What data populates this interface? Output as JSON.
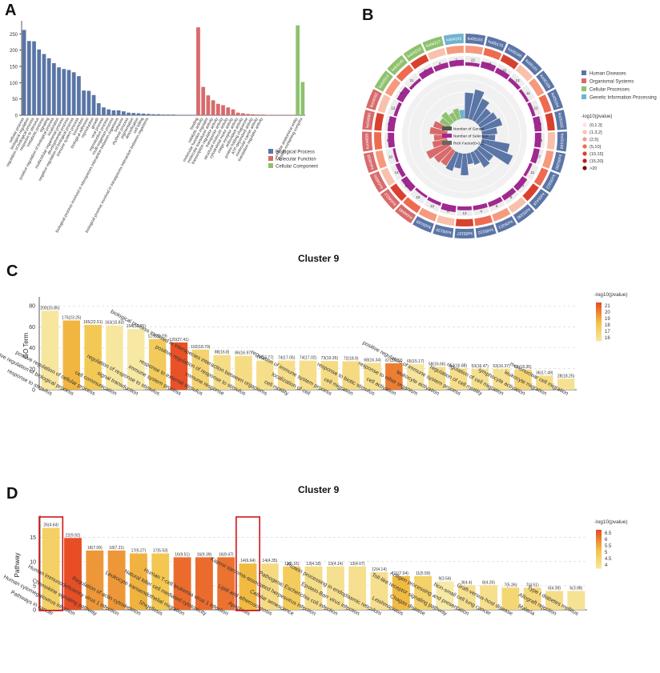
{
  "panels": {
    "a": "A",
    "b": "B",
    "c": "C",
    "d": "D"
  },
  "colors": {
    "bp": "#5a75a6",
    "mf": "#d86a6b",
    "cc": "#8ec16d",
    "human_diseases": "#5a75a6",
    "organismal_systems": "#d86a6b",
    "cellular_processes": "#8ec16d",
    "genetic_info": "#6fb2cf"
  },
  "chart_data": [
    {
      "id": "A",
      "type": "bar",
      "title": "",
      "xlabel": "",
      "ylabel": "",
      "ylim": [
        0,
        290
      ],
      "yticks": [
        0,
        50,
        100,
        150,
        200,
        250
      ],
      "legend_position": "right",
      "legend": [
        "Biological Process",
        "Molecular Function",
        "Cellular Component"
      ],
      "groups": [
        "bp",
        "bp",
        "bp",
        "bp",
        "bp",
        "bp",
        "bp",
        "bp",
        "bp",
        "bp",
        "bp",
        "bp",
        "bp",
        "bp",
        "bp",
        "bp",
        "bp",
        "bp",
        "bp",
        "bp",
        "bp",
        "bp",
        "bp",
        "bp",
        "bp",
        "bp",
        "bp",
        "bp",
        "bp",
        "bp",
        "bp",
        "bp",
        "bp",
        "bp",
        "bp",
        "mf",
        "mf",
        "mf",
        "mf",
        "mf",
        "mf",
        "mf",
        "mf",
        "mf",
        "mf",
        "mf",
        "mf",
        "mf",
        "mf",
        "mf",
        "mf",
        "mf",
        "mf",
        "mf",
        "mf",
        "cc",
        "cc"
      ],
      "categories": [
        "cellular process",
        "biological regulation",
        "regulation of biological process",
        "response to stimulus",
        "metabolic process",
        "signaling",
        "positive regulation of biological process",
        "localization",
        "multicellular organismal process",
        "developmental process",
        "negative regulation of biological process",
        "immune system process",
        "locomotion",
        "biological adhesion",
        "reproduction",
        "growth",
        "viral process",
        "reproductive process",
        "multi-organism process",
        "biological process involved in interspecies interaction between organisms",
        "behavior",
        "rhythmic process",
        "pigmentation",
        "detoxification",
        "cell killing",
        "biological process involved in intraspecies interaction between organisms",
        "",
        "",
        "",
        "",
        "",
        "",
        "",
        "",
        "",
        "binding",
        "catalytic activity",
        "molecular function regulator",
        "molecular transducer activity",
        "transcription regulator activity",
        "transporter activity",
        "structural molecule activity",
        "cytoskeletal motor activity",
        "cargo receptor activity",
        "antioxidant activity",
        "protein folding chaperone",
        "ATP-dependent activity",
        "molecular carrier activity",
        "translation regulator activity",
        "",
        "",
        "",
        "",
        "",
        "",
        "cellular anatomical entity",
        "protein-containing complex"
      ],
      "values": [
        262,
        228,
        227,
        202,
        188,
        175,
        160,
        147,
        142,
        139,
        132,
        120,
        76,
        75,
        62,
        37,
        24,
        18,
        15,
        15,
        12,
        8,
        7,
        6,
        5,
        4,
        3,
        3,
        2,
        2,
        2,
        1,
        1,
        1,
        1,
        270,
        87,
        61,
        46,
        35,
        31,
        24,
        18,
        8,
        6,
        4,
        3,
        2,
        2,
        1,
        1,
        1,
        1,
        1,
        1,
        276,
        102
      ]
    },
    {
      "id": "B",
      "type": "circular",
      "title": "",
      "legend_categories": [
        "Human Diseases",
        "Organismal Systems",
        "Cellular Processes",
        "Genetic Information Processing"
      ],
      "pvalue_legend_title": "-log10(pvalue)",
      "pvalue_bins": [
        "(0,1.3]",
        "(1.3,2]",
        "(2,5]",
        "(5,10]",
        "(10,15]",
        "(15,20]",
        ">20"
      ],
      "pvalue_colors": [
        "#fbe3dc",
        "#f9c1ad",
        "#f59a7e",
        "#ee6b51",
        "#d9412f",
        "#b21e1e",
        "#7e0a0a"
      ],
      "track_legend": [
        "Number of Genes",
        "Number of Selection",
        "Rich Factor(0-0.2)"
      ],
      "pathways": [
        "ko05163",
        "ko05170",
        "ko05166",
        "ko05161",
        "ko05169",
        "ko05164",
        "ko05162",
        "ko05168",
        "ko05200",
        "ko05322",
        "ko05416",
        "ko05330",
        "ko05321",
        "ko05222",
        "ko05167",
        "ko05130",
        "ko05169",
        "ko04640",
        "ko04612",
        "ko04650",
        "ko04658",
        "ko04659",
        "ko04660",
        "ko04062",
        "ko04514",
        "ko04145",
        "ko04210",
        "ko04217",
        "ko04141"
      ],
      "class": [
        "HD",
        "HD",
        "HD",
        "HD",
        "HD",
        "HD",
        "HD",
        "HD",
        "HD",
        "HD",
        "HD",
        "HD",
        "HD",
        "HD",
        "HD",
        "HD",
        "HD",
        "OS",
        "OS",
        "OS",
        "OS",
        "OS",
        "OS",
        "OS",
        "CP",
        "CP",
        "CP",
        "CP",
        "GI"
      ],
      "selected_counts": [
        22,
        18,
        16,
        13,
        11,
        12,
        9,
        8,
        17,
        11,
        7,
        6,
        5,
        4,
        13,
        8,
        12,
        10,
        9,
        14,
        10,
        8,
        9,
        12,
        9,
        11,
        8,
        6,
        7
      ],
      "rich_factor": [
        0.12,
        0.14,
        0.11,
        0.08,
        0.09,
        0.1,
        0.07,
        0.06,
        0.13,
        0.16,
        0.08,
        0.09,
        0.06,
        0.05,
        0.1,
        0.07,
        0.09,
        0.08,
        0.09,
        0.11,
        0.07,
        0.06,
        0.08,
        0.07,
        0.05,
        0.06,
        0.04,
        0.05,
        0.04
      ]
    },
    {
      "id": "C",
      "type": "bar",
      "title": "Cluster 9",
      "xlabel": "",
      "ylabel": "GO Term",
      "ylim": [
        0,
        84
      ],
      "yticks": [
        0,
        20,
        40,
        60,
        80
      ],
      "color_legend_title": "-log10(pvalue)",
      "color_legend_ticks": [
        21,
        20,
        19,
        18,
        17,
        16
      ],
      "categories": [
        "response to stimulus",
        "positive regulation of biological process",
        "positive regulation of cellular process",
        "cell communication",
        "signal transduction",
        "regulation of response to stimulus",
        "immune system process",
        "response to external stimulus",
        "immune response",
        "positive regulation of response to stimulus",
        "biological process involved in interspecies interaction between organisms",
        "cell motility",
        "localization of cell",
        "regulation of immune system process",
        "cell migration",
        "response to biotic stimulus",
        "cell activation",
        "response to other organism",
        "leukocyte activation",
        "positive regulation of immune system process",
        "regulation of cell motility",
        "regulation of cell migration",
        "lymphocyte activation",
        "leukocyte migration",
        "mononuclear cell migration"
      ],
      "values": [
        75.4,
        66.1,
        61.9,
        61.3,
        57.9,
        48.5,
        45.1,
        38.3,
        33.1,
        32.3,
        27.8,
        27.8,
        27.8,
        27.4,
        27.1,
        25.6,
        25.2,
        24.4,
        21.8,
        20.4,
        19.9,
        19.9,
        19.2,
        13.5,
        10.5
      ],
      "bar_labels": [
        "200(15.85)",
        "175(23.25)",
        "165(22.51)",
        "163(15.83)",
        "154(15.65)",
        "129(20.19)",
        "120(27.41)",
        "102(18.79)",
        "88(16.8)",
        "86(16.97)",
        "74(17.77)",
        "74(17.05)",
        "74(17.02)",
        "73(19.35)",
        "72(18.9)",
        "68(16.34)",
        "67(23.02)",
        "65(15.17)",
        "58(16.66)",
        "53(16.88)",
        "53(16.47)",
        "53(16.37)",
        "51(18.35)",
        "36(17.49)",
        "28(18.25)"
      ],
      "neglog10_pvalue": [
        15.85,
        18.8,
        18.0,
        15.83,
        15.65,
        17.8,
        21.3,
        17.2,
        16.5,
        16.6,
        16.4,
        16.4,
        16.4,
        16.6,
        16.7,
        16.3,
        20.2,
        15.9,
        16.5,
        16.4,
        16.3,
        16.3,
        17.0,
        16.6,
        16.2
      ]
    },
    {
      "id": "D",
      "type": "bar",
      "title": "Cluster 9",
      "xlabel": "",
      "ylabel": "Pathway",
      "ylim": [
        0,
        18.6
      ],
      "yticks": [
        0,
        5,
        10,
        15
      ],
      "color_legend_title": "-log10(pvalue)",
      "color_legend_ticks": [
        6.5,
        6,
        5.5,
        5,
        4.5,
        4
      ],
      "categories": [
        "Pathways in cancer",
        "Human cytomegalovirus infection",
        "Chemokine signaling pathway",
        "Human immunodeficiency virus 1 infection",
        "Regulation of actin cytoskeleton",
        "Shigellosis",
        "Leukocyte transendothelial migration",
        "Natural killer cell mediated cytotoxicity",
        "Human T-cell leukemia virus 1 infection",
        "Apoptosis",
        "Lipid and atherosclerosis",
        "Cellular senescence",
        "Kaposi sarcoma-associated herpesvirus infection",
        "Pathogenic Escherichia coli infection",
        "Epstein-Barr virus infection",
        "Protein processing in endoplasmic reticulum",
        "Leishmaniasis",
        "Chagas disease",
        "Toll-like receptor signaling pathway",
        "Antigen processing and presentation",
        "Non-small cell lung cancer",
        "Graft-versus-host disease",
        "Malaria",
        "Allograft rejection",
        "Type I diabetes mellitus"
      ],
      "values": [
        17.0,
        14.9,
        12.3,
        12.3,
        11.7,
        11.7,
        10.9,
        10.9,
        10.9,
        9.6,
        9.6,
        9.0,
        9.0,
        9.0,
        9.0,
        7.8,
        7.0,
        7.0,
        5.9,
        5.1,
        5.1,
        4.6,
        4.6,
        3.9,
        3.9
      ],
      "bar_labels": [
        "26(4.64)",
        "22(9.92)",
        "18(7.09)",
        "18(7.21)",
        "17(6.27)",
        "17(5.53)",
        "16(9.51)",
        "16(9.39)",
        "16(9.47)",
        "14(6.64)",
        "14(4.35)",
        "13(5.16)",
        "13(4.18)",
        "13(4.14)",
        "13(4.07)",
        "12(4.14)",
        "11(7.04)",
        "11(5.59)",
        "9(3.54)",
        "8(4.4)",
        "8(4.26)",
        "7(5.26)",
        "7(4.51)",
        "6(4.39)",
        "6(3.98)"
      ],
      "neglog10_pvalue": [
        4.64,
        6.8,
        5.8,
        5.8,
        5.4,
        5.0,
        6.4,
        6.4,
        6.3,
        5.3,
        4.2,
        4.8,
        4.1,
        4.0,
        4.0,
        4.0,
        5.3,
        4.6,
        3.6,
        4.0,
        4.0,
        4.4,
        4.3,
        4.1,
        3.9
      ],
      "highlighted": [
        "Pathways in cancer",
        "Apoptosis"
      ]
    }
  ]
}
